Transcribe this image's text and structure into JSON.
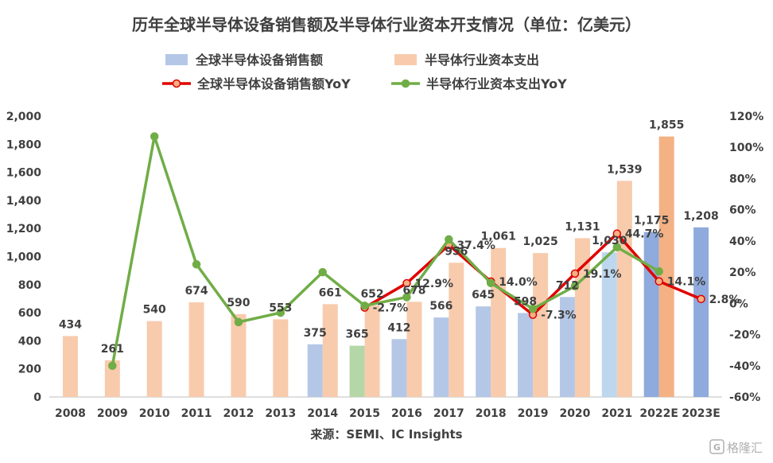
{
  "chart_data": {
    "type": "bar",
    "title": "历年全球半导体设备销售额及半导体行业资本开支情况（单位：亿美元）",
    "source": "来源：SEMI、IC Insights",
    "watermark": "格隆汇",
    "categories": [
      "2008",
      "2009",
      "2010",
      "2011",
      "2012",
      "2013",
      "2014",
      "2015",
      "2016",
      "2017",
      "2018",
      "2019",
      "2020",
      "2021",
      "2022E",
      "2023E"
    ],
    "y_left": {
      "min": 0,
      "max": 2000,
      "ticks": [
        "0",
        "200",
        "400",
        "600",
        "800",
        "1,000",
        "1,200",
        "1,400",
        "1,600",
        "1,800",
        "2,000"
      ]
    },
    "y_right": {
      "min": -60,
      "max": 120,
      "ticks": [
        "-60%",
        "-40%",
        "-20%",
        "0%",
        "20%",
        "40%",
        "60%",
        "80%",
        "100%",
        "120%"
      ]
    },
    "grid": false,
    "legend_position": "top",
    "series": [
      {
        "name": "全球半导体设备销售额",
        "kind": "bar",
        "axis": "left",
        "color": "#b4c7e7",
        "values": [
          null,
          null,
          null,
          null,
          null,
          null,
          375,
          365,
          412,
          566,
          645,
          598,
          712,
          1030,
          1175,
          1208
        ],
        "labels": [
          null,
          null,
          null,
          null,
          null,
          null,
          "375",
          "365",
          "412",
          "566",
          "645",
          "598",
          "712",
          "1,030",
          "1,175",
          "1,208"
        ],
        "point_colors": [
          null,
          null,
          null,
          null,
          null,
          null,
          "#b4c7e7",
          "#b5d7a8",
          "#b4c7e7",
          "#b4c7e7",
          "#b4c7e7",
          "#b4c7e7",
          "#b4c7e7",
          "#bdd7ee",
          "#8faadc",
          "#8faadc"
        ]
      },
      {
        "name": "半导体行业资本支出",
        "kind": "bar",
        "axis": "left",
        "color": "#f8cbad",
        "values": [
          434,
          261,
          540,
          674,
          590,
          553,
          661,
          652,
          678,
          956,
          1061,
          1025,
          1131,
          1539,
          1855,
          null
        ],
        "labels": [
          "434",
          "261",
          "540",
          "674",
          "590",
          "553",
          "661",
          "652",
          "678",
          "956",
          "1,061",
          "1,025",
          "1,131",
          "1,539",
          "1,855",
          null
        ],
        "point_colors": [
          "#f8cbad",
          "#f8cbad",
          "#f8cbad",
          "#f8cbad",
          "#f8cbad",
          "#f8cbad",
          "#f8cbad",
          "#f8cbad",
          "#f8cbad",
          "#f8cbad",
          "#f8cbad",
          "#f8cbad",
          "#f8cbad",
          "#f8cbad",
          "#f4b183",
          null
        ]
      },
      {
        "name": "全球半导体设备销售额YoY",
        "kind": "line",
        "axis": "right",
        "color": "#e00000",
        "marker_fill": "#f4b183",
        "values": [
          null,
          null,
          null,
          null,
          null,
          null,
          null,
          -2.7,
          12.9,
          37.4,
          14.0,
          -7.3,
          19.1,
          44.7,
          14.1,
          2.8
        ],
        "labels": [
          null,
          null,
          null,
          null,
          null,
          null,
          null,
          "-2.7%",
          "12.9%",
          "37.4%",
          "14.0%",
          "-7.3%",
          "19.1%",
          "44.7%",
          "14.1%",
          "2.8%"
        ]
      },
      {
        "name": "半导体行业资本支出YoY",
        "kind": "line",
        "axis": "right",
        "color": "#70ad47",
        "marker_fill": "#70ad47",
        "values": [
          null,
          -40,
          107,
          25,
          -12,
          -6,
          20,
          -1.5,
          4,
          41,
          13,
          -3.5,
          11,
          36,
          20.5,
          null
        ]
      }
    ]
  }
}
